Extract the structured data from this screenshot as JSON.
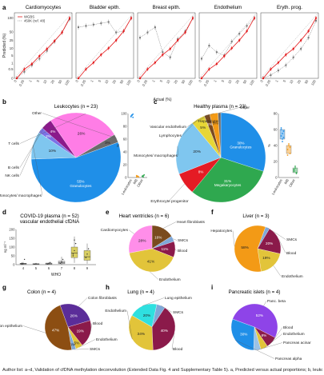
{
  "panel_letters": [
    "a",
    "b",
    "c",
    "d",
    "e",
    "f",
    "g",
    "h",
    "i"
  ],
  "caption": "Author list: a–d, Validation of cfDNA methylation deconvolution (Extended Data Fig. 4 and Supplementary Table 5). a, Predicted versus actual proportions; b, leukocytes; c, healthy plasma; d, vascular endothelial cfDNA levels in COVID-19 plasma by WHO severity; e–i, tissue-specific cfDNA profiles.",
  "colors": {
    "wgbs": "#e31a1c",
    "bs450k": "#777777",
    "granulocytes": "#1f8fe8",
    "tcells": "#ff7de6",
    "bcells": "#8b1a8b",
    "nkcells": "#7b72e6",
    "monocytes": "#7fc6ef",
    "other": "#6b6b6b",
    "megakaryocytes": "#2fa84f",
    "erythrocyte": "#e51b24",
    "lymphocytes": "#e7d636",
    "vascular": "#7a4a20",
    "hepatocytes": "#f39a16",
    "blood": "#8b1a4a",
    "endothelium": "#e2c43a",
    "cardiomyocytes": "#ff8ee9",
    "heart_fibroblasts": "#7a4b1e",
    "smcs": "#7fa8d8",
    "colon_fib": "#5b2d99",
    "colon_epi": "#8c4e12",
    "lung_epi": "#2fe0e0",
    "panc_beta": "#8e44e8",
    "panc_alpha": "#1f8fe8",
    "panc_acinar": "#9bc2e6"
  },
  "chart_data": [
    {
      "id": "a",
      "type": "line",
      "legend": [
        "WGBS",
        "450K (ref. 48)"
      ],
      "legend_position": "top-left",
      "ylabel": "Predicted (%)",
      "xlabel": "Actual (%)",
      "ylim": [
        0,
        100
      ],
      "xticks": [
        "0",
        "0.25",
        "1",
        "5",
        "10",
        "25",
        "50",
        "100"
      ],
      "yticks": [
        "0",
        "0.5",
        "1",
        "5",
        "10",
        "25",
        "50",
        "100"
      ],
      "subplots": [
        {
          "title": "Cardiomyocytes",
          "wgbs": [
            0.0,
            0.14,
            0.22,
            0.34,
            0.45,
            0.57,
            0.7,
            0.92
          ],
          "k450": [
            0.0,
            0.1,
            0.2,
            0.3,
            0.42,
            0.56,
            0.7,
            0.9
          ]
        },
        {
          "title": "Bladder epith.",
          "wgbs": [
            0.0,
            0.14,
            0.24,
            0.36,
            0.46,
            0.58,
            0.72,
            0.92
          ],
          "k450": [
            0.78,
            0.8,
            0.82,
            0.84,
            0.86,
            0.7,
            0.72,
            0.92
          ]
        },
        {
          "title": "Breast epith.",
          "wgbs": [
            0.0,
            0.14,
            0.24,
            0.36,
            0.45,
            0.58,
            0.7,
            0.92
          ],
          "k450": [
            0.62,
            0.7,
            0.78,
            0.4,
            0.32,
            0.6,
            0.72,
            0.92
          ]
        },
        {
          "title": "Endothelium",
          "wgbs": [
            0.0,
            0.14,
            0.22,
            0.34,
            0.46,
            0.58,
            0.72,
            0.92
          ],
          "k450": [
            0.3,
            0.5,
            0.4,
            0.35,
            0.56,
            0.68,
            0.8,
            0.92
          ]
        },
        {
          "title": "Eryth. prog.",
          "wgbs": [
            0.0,
            0.14,
            0.24,
            0.36,
            0.45,
            0.58,
            0.72,
            0.92
          ],
          "k450": [
            0.0,
            0.05,
            0.12,
            0.2,
            0.32,
            0.45,
            0.62,
            0.88
          ]
        }
      ]
    },
    {
      "id": "b",
      "type": "pie",
      "title": "Leukocytes (n = 23)",
      "slices": [
        {
          "label": "Granulocytes",
          "value": 55,
          "text": "55%\nGranulocytes",
          "color_key": "granulocytes"
        },
        {
          "label": "Monocytes/ macrophages",
          "value": 10,
          "text": "10%",
          "color_key": "monocytes"
        },
        {
          "label": "NK cells",
          "value": 2,
          "text": "2%",
          "color_key": "nkcells"
        },
        {
          "label": "B cells",
          "value": 4,
          "text": "4%",
          "color_key": "bcells"
        },
        {
          "label": "T cells",
          "value": 26,
          "text": "26%",
          "color_key": "tcells"
        },
        {
          "label": "Other",
          "value": 3,
          "text": "3%",
          "color_key": "other"
        }
      ],
      "strip": {
        "ylabel": "%",
        "ylim": [
          0,
          100
        ],
        "yticks": [
          0,
          20,
          40,
          60,
          80,
          100
        ],
        "categories": [
          "Leukocytes",
          "MB",
          "Other"
        ],
        "values": [
          [
            95,
            97,
            99,
            96,
            98,
            94
          ],
          [
            1,
            2,
            1,
            3,
            2
          ],
          [
            2,
            3,
            4,
            2,
            1
          ]
        ]
      }
    },
    {
      "id": "c",
      "type": "pie",
      "title": "Healthy plasma (n = 23)",
      "slices": [
        {
          "label": "Granulocytes",
          "value": 30,
          "text": "30%\nGranulocytes",
          "color_key": "granulocytes"
        },
        {
          "label": "Megakaryocytes",
          "value": 31,
          "text": "31%\nMegakaryocytes",
          "color_key": "megakaryocytes"
        },
        {
          "label": "Erythrocyte progenitor",
          "value": 8,
          "text": "8%",
          "color_key": "erythrocyte"
        },
        {
          "label": "Monocytes/ macrophages",
          "value": 20,
          "text": "20%",
          "color_key": "monocytes"
        },
        {
          "label": "Lymphocytes",
          "value": 5,
          "text": "5%",
          "color_key": "lymphocytes"
        },
        {
          "label": "Vascular endothelium",
          "value": 2,
          "text": "2%",
          "color_key": "vascular"
        },
        {
          "label": "Hepatocytes",
          "value": 3,
          "text": "3%",
          "color_key": "hepatocytes"
        },
        {
          "label": "Other",
          "value": 1,
          "text": "",
          "color_key": "other"
        }
      ],
      "strip": {
        "ylabel": "%",
        "ylim": [
          0,
          80
        ],
        "yticks": [
          0,
          20,
          40,
          60,
          80
        ],
        "categories": [
          "Leukocytes",
          "MB",
          "Other"
        ],
        "values": [
          [
            60,
            55,
            50,
            62,
            48,
            58,
            52,
            45
          ],
          [
            35,
            40,
            30,
            28,
            42,
            38
          ],
          [
            8,
            12,
            5,
            10,
            14,
            6
          ]
        ]
      }
    },
    {
      "id": "d",
      "type": "box",
      "title": "COVID-19 plasma (n = 52)\nvascular endothelial cfDNA",
      "ylabel": "ng ml⁻¹",
      "xlabel": "WHO",
      "ylim": [
        0,
        200
      ],
      "yticks": [
        0,
        50,
        100,
        150,
        200
      ],
      "categories": [
        "4",
        "5",
        "6",
        "7",
        "8",
        "9"
      ],
      "boxes": [
        {
          "q1": 3,
          "median": 5,
          "q3": 8,
          "lo": 0,
          "hi": 15,
          "points": [
            2,
            5,
            30,
            8
          ]
        },
        {
          "q1": 2,
          "median": 4,
          "q3": 6,
          "lo": 0,
          "hi": 10,
          "points": [
            3,
            5
          ]
        },
        {
          "q1": 2,
          "median": 5,
          "q3": 9,
          "lo": 0,
          "hi": 14,
          "points": [
            4,
            6,
            12
          ]
        },
        {
          "q1": 5,
          "median": 10,
          "q3": 20,
          "lo": 0,
          "hi": 45,
          "points": [
            8,
            15,
            30
          ]
        },
        {
          "q1": 40,
          "median": 65,
          "q3": 100,
          "lo": 10,
          "hi": 160,
          "points": [
            50,
            80,
            120,
            60,
            140
          ]
        },
        {
          "q1": 25,
          "median": 45,
          "q3": 80,
          "lo": 5,
          "hi": 120,
          "points": [
            40,
            60,
            90
          ]
        }
      ]
    },
    {
      "id": "e",
      "type": "pie",
      "title": "Heart ventricles (n = 6)",
      "slices": [
        {
          "label": "Heart fibroblasts",
          "value": 16,
          "text": "16%",
          "color_key": "heart_fibroblasts"
        },
        {
          "label": "SMCs",
          "value": 4,
          "text": "",
          "color_key": "smcs"
        },
        {
          "label": "Blood",
          "value": 11,
          "text": "11%",
          "color_key": "blood"
        },
        {
          "label": "Endothelium",
          "value": 41,
          "text": "41%",
          "color_key": "endothelium"
        },
        {
          "label": "Cardiomyocytes",
          "value": 28,
          "text": "28%",
          "color_key": "cardiomyocytes"
        }
      ]
    },
    {
      "id": "f",
      "type": "pie",
      "title": "Liver (n = 3)",
      "slices": [
        {
          "label": "SMCs",
          "value": 3,
          "text": "",
          "color_key": "smcs"
        },
        {
          "label": "Blood",
          "value": 20,
          "text": "20%",
          "color_key": "blood"
        },
        {
          "label": "Endothelium",
          "value": 19,
          "text": "19%",
          "color_key": "endothelium"
        },
        {
          "label": "Hepatocytes",
          "value": 58,
          "text": "58%",
          "color_key": "hepatocytes"
        }
      ]
    },
    {
      "id": "g",
      "type": "pie",
      "title": "Colon (n = 4)",
      "slices": [
        {
          "label": "Colon fibroblasts",
          "value": 26,
          "text": "26%",
          "color_key": "colon_fib"
        },
        {
          "label": "Blood",
          "value": 19,
          "text": "19%",
          "color_key": "blood"
        },
        {
          "label": "Endothelium",
          "value": 5,
          "text": "5%",
          "color_key": "endothelium"
        },
        {
          "label": "SMCs",
          "value": 3,
          "text": "3%",
          "color_key": "smcs"
        },
        {
          "label": "Colon epithelium",
          "value": 47,
          "text": "47%",
          "color_key": "colon_epi"
        }
      ]
    },
    {
      "id": "h",
      "type": "pie",
      "title": "Lung (n = 4)",
      "slices": [
        {
          "label": "Lung epithelium",
          "value": 20,
          "text": "20%",
          "color_key": "lung_epi"
        },
        {
          "label": "SMCs",
          "value": 6,
          "text": "",
          "color_key": "smcs"
        },
        {
          "label": "Blood",
          "value": 40,
          "text": "40%",
          "color_key": "blood"
        },
        {
          "label": "Endothelium",
          "value": 34,
          "text": "34%",
          "color_key": "endothelium"
        }
      ]
    },
    {
      "id": "i",
      "type": "pie",
      "title": "Pancreatic islets (n = 4)",
      "slices": [
        {
          "label": "Panc. beta",
          "value": 52,
          "text": "52%",
          "color_key": "panc_beta"
        },
        {
          "label": "Blood",
          "value": 8,
          "text": "8%",
          "color_key": "blood"
        },
        {
          "label": "Endothelium",
          "value": 5,
          "text": "",
          "color_key": "endothelium"
        },
        {
          "label": "Pancreas acinar",
          "value": 5,
          "text": "",
          "color_key": "panc_acinar"
        },
        {
          "label": "Pancreas alpha",
          "value": 30,
          "text": "30%",
          "color_key": "panc_alpha"
        }
      ]
    }
  ]
}
